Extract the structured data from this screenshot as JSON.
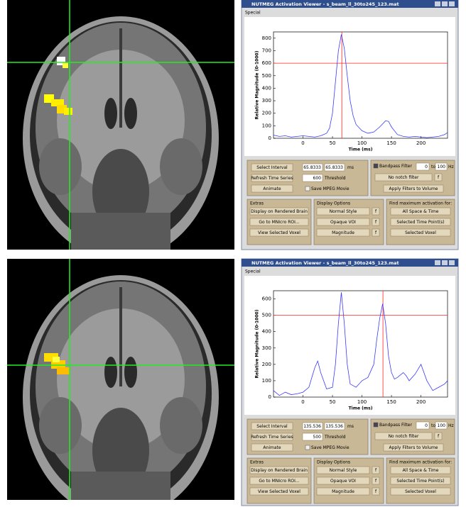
{
  "panels": [
    {
      "viewer": {
        "title": "NUTMEG Activation Viewer - s_beam_ll_30to245_123.mat",
        "menu": "Special",
        "plot": {
          "type": "line",
          "xlabel": "Time (ms)",
          "ylabel": "Relative Magnitude (0-1000)",
          "xlim": [
            -50,
            245
          ],
          "ylim": [
            0,
            850
          ],
          "xticks": [
            0,
            50,
            100,
            150,
            200
          ],
          "yticks": [
            0,
            100,
            200,
            300,
            400,
            500,
            600,
            700,
            800
          ],
          "line_color": "#3a3aff",
          "marker_color": "#ff2020",
          "x": [
            -50,
            -40,
            -30,
            -20,
            -10,
            0,
            10,
            20,
            30,
            40,
            45,
            50,
            55,
            60,
            65,
            70,
            75,
            80,
            85,
            90,
            100,
            110,
            120,
            130,
            140,
            145,
            150,
            160,
            170,
            180,
            190,
            200,
            210,
            220,
            230,
            240,
            245
          ],
          "values": [
            25,
            15,
            20,
            10,
            15,
            20,
            15,
            10,
            20,
            40,
            80,
            200,
            450,
            700,
            830,
            720,
            500,
            300,
            180,
            110,
            60,
            40,
            50,
            90,
            140,
            135,
            90,
            30,
            15,
            10,
            15,
            10,
            5,
            10,
            15,
            30,
            45
          ]
        },
        "controls": {
          "select_interval": "Select Interval",
          "interval_start": 65.8333,
          "interval_end": 65.8333,
          "interval_unit": "ms",
          "refresh": "Refresh Time Series",
          "threshold": 600,
          "threshold_label": "Threshold",
          "animate": "Animate",
          "save_movie": "Save MPEG Movie",
          "bandpass": "Bandpass Filter",
          "band_low": 0,
          "band_to": "to",
          "band_high": 100,
          "band_unit": "Hz",
          "notch": "No notch filter",
          "f_button": "f",
          "apply_filters": "Apply Filters to Volume",
          "extras_title": "Extras",
          "display_rendered": "Display on Rendered Brain",
          "goto_roi": "Go to MNIcro ROI...",
          "view_selected": "View Selected Voxel",
          "display_title": "Display Options",
          "style": "Normal Style",
          "voi": "Opaque VOI",
          "magnitude": "Magnitude",
          "find_title": "Find maximum activation for:",
          "all_space": "All Space & Time",
          "selected_time": "Selected Time Point(s)",
          "selected_voxel": "Selected Voxel"
        }
      }
    },
    {
      "viewer": {
        "title": "NUTMEG Activation Viewer - s_beam_ll_30to245_123.mat",
        "menu": "Special",
        "plot": {
          "type": "line",
          "xlabel": "Time (ms)",
          "ylabel": "Relative Magnitude (0-1000)",
          "xlim": [
            -50,
            245
          ],
          "ylim": [
            0,
            650
          ],
          "xticks": [
            0,
            50,
            100,
            150,
            200
          ],
          "yticks": [
            0,
            100,
            200,
            300,
            400,
            500,
            600
          ],
          "line_color": "#3a3aff",
          "marker_color": "#ff2020",
          "x": [
            -50,
            -40,
            -30,
            -20,
            -10,
            0,
            10,
            20,
            25,
            30,
            40,
            50,
            55,
            60,
            65,
            70,
            75,
            80,
            90,
            100,
            110,
            120,
            125,
            130,
            135,
            140,
            145,
            150,
            155,
            160,
            170,
            175,
            180,
            190,
            200,
            210,
            220,
            230,
            240,
            245
          ],
          "values": [
            40,
            10,
            30,
            15,
            20,
            30,
            60,
            180,
            220,
            150,
            50,
            60,
            200,
            450,
            640,
            450,
            200,
            80,
            60,
            100,
            120,
            200,
            350,
            480,
            570,
            450,
            250,
            150,
            110,
            120,
            150,
            130,
            100,
            140,
            200,
            100,
            40,
            60,
            80,
            100
          ]
        },
        "controls": {
          "select_interval": "Select Interval",
          "interval_start": 135.536,
          "interval_end": 135.536,
          "interval_unit": "ms",
          "refresh": "Refresh Time Series",
          "threshold": 500,
          "threshold_label": "Threshold",
          "animate": "Animate",
          "save_movie": "Save MPEG Movie",
          "bandpass": "Bandpass Filter",
          "band_low": 0,
          "band_to": "to",
          "band_high": 100,
          "band_unit": "Hz",
          "notch": "No notch filter",
          "f_button": "f",
          "apply_filters": "Apply Filters to Volume",
          "extras_title": "Extras",
          "display_rendered": "Display on Rendered Brain",
          "goto_roi": "Go to MNIcro ROI...",
          "view_selected": "View Selected Voxel",
          "display_title": "Display Options",
          "style": "Normal Style",
          "voi": "Opaque VOI",
          "magnitude": "Magnitude",
          "find_title": "Find maximum activation for:",
          "all_space": "All Space & Time",
          "selected_time": "Selected Time Point(s)",
          "selected_voxel": "Selected Voxel"
        }
      }
    }
  ]
}
